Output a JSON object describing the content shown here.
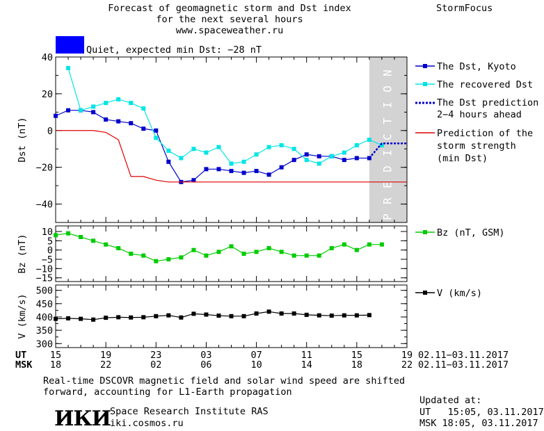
{
  "header": {
    "title_line1": "Forecast of geomagnetic storm and Dst index",
    "title_line2": "for the next several hours",
    "website": "www.spaceweather.ru",
    "brand": "StormFocus",
    "status_text": "Quiet, expected min Dst: −28 nT",
    "status_color": "#0000ff"
  },
  "dst_panel": {
    "ylabel": "Dst (nT)",
    "yticks": [
      "40",
      "20",
      "0",
      "−20",
      "−40"
    ],
    "prediction_band_text": "PREDICTION"
  },
  "bz_panel": {
    "ylabel": "Bz (nT)",
    "yticks": [
      "10",
      "5",
      "0",
      "−5",
      "−10",
      "−15"
    ]
  },
  "v_panel": {
    "ylabel": "V (km/s)",
    "yticks": [
      "500",
      "450",
      "400",
      "350",
      "300"
    ]
  },
  "legend": {
    "dst_kyoto": "The Dst, Kyoto",
    "recovered": "The recovered Dst",
    "prediction_1": "The Dst prediction",
    "prediction_2": "2−4 hours ahead",
    "strength_1": "Prediction of the",
    "strength_2": "storm strength",
    "strength_3": "(min Dst)",
    "bz": "Bz (nT, GSM)",
    "v": "V (km/s)"
  },
  "xaxis": {
    "ut_label": "UT",
    "msk_label": "MSK",
    "ut_ticks": [
      "15",
      "19",
      "23",
      "03",
      "07",
      "11",
      "15",
      "19"
    ],
    "msk_ticks": [
      "18",
      "22",
      "02",
      "06",
      "10",
      "14",
      "18",
      "22"
    ],
    "ut_range": "02.11−03.11.2017",
    "msk_range": "02.11−03.11.2017"
  },
  "footer": {
    "note_1": "Real-time DSCOVR magnetic field and solar wind speed are shifted",
    "note_2": "forward, accounting for L1-Earth propagation",
    "logo_text": "ИКИ",
    "institute": "Space Research Institute RAS",
    "site": "iki.cosmos.ru",
    "updated_label": "Updated at:",
    "updated_ut": "UT   15:05, 03.11.2017",
    "updated_msk": "MSK 18:05, 03.11.2017"
  },
  "chart_data": [
    {
      "type": "line",
      "panel": "Dst",
      "x_unit": "hours since 02.11 15 UT",
      "xlim": [
        0,
        28
      ],
      "ylim": [
        -50,
        40
      ],
      "prediction_band_x": [
        25,
        28
      ],
      "series": [
        {
          "name": "The Dst, Kyoto",
          "color": "#0000cc",
          "x": [
            0,
            1,
            2,
            3,
            4,
            5,
            6,
            7,
            8,
            9,
            10,
            11,
            12,
            13,
            14,
            15,
            16,
            17,
            18,
            19,
            20,
            21,
            22,
            23,
            24,
            25
          ],
          "y": [
            8,
            11,
            11,
            10,
            6,
            5,
            4,
            1,
            0,
            -17,
            -28,
            -27,
            -21,
            -21,
            -22,
            -23,
            -22,
            -24,
            -20,
            -16,
            -13,
            -14,
            -14,
            -16,
            -15,
            -15
          ]
        },
        {
          "name": "The recovered Dst",
          "color": "#00e5e5",
          "x": [
            1,
            2,
            3,
            4,
            5,
            6,
            7,
            8,
            9,
            10,
            11,
            12,
            13,
            14,
            15,
            16,
            17,
            18,
            19,
            20,
            21,
            22,
            23,
            24,
            25,
            26
          ],
          "y": [
            34,
            11,
            13,
            15,
            17,
            15,
            12,
            -4,
            -11,
            -15,
            -10,
            -12,
            -9,
            -18,
            -17,
            -13,
            -9,
            -8,
            -10,
            -16,
            -18,
            -14,
            -12,
            -8,
            -5,
            -8
          ]
        },
        {
          "name": "The Dst prediction 2−4 hours ahead",
          "color": "#0000cc",
          "dashed": true,
          "x": [
            25,
            26,
            27,
            28
          ],
          "y": [
            -15,
            -7,
            -7,
            -7
          ]
        },
        {
          "name": "Prediction of the storm strength (min Dst)",
          "color": "#dd0000",
          "x": [
            0,
            3,
            4,
            5,
            6,
            7,
            8,
            9,
            10,
            28
          ],
          "y": [
            0,
            0,
            -1,
            -5,
            -25,
            -25,
            -27,
            -28,
            -28,
            -28
          ]
        }
      ]
    },
    {
      "type": "line",
      "panel": "Bz",
      "xlim": [
        0,
        28
      ],
      "ylim": [
        -17,
        13
      ],
      "series": [
        {
          "name": "Bz (nT, GSM)",
          "color": "#00cc00",
          "x": [
            0,
            1,
            2,
            3,
            4,
            5,
            6,
            7,
            8,
            9,
            10,
            11,
            12,
            13,
            14,
            15,
            16,
            17,
            18,
            19,
            20,
            21,
            22,
            23,
            24,
            25,
            26
          ],
          "y": [
            8,
            9,
            7,
            5,
            3,
            1,
            -2,
            -3,
            -6,
            -5,
            -4,
            0,
            -3,
            -1,
            2,
            -2,
            -1,
            1,
            -1,
            -3,
            -3,
            -3,
            1,
            3,
            0,
            3,
            3
          ]
        }
      ]
    },
    {
      "type": "line",
      "panel": "V",
      "xlim": [
        0,
        28
      ],
      "ylim": [
        285,
        520
      ],
      "series": [
        {
          "name": "V (km/s)",
          "color": "#000000",
          "x": [
            0,
            1,
            2,
            3,
            4,
            5,
            6,
            7,
            8,
            9,
            10,
            11,
            12,
            13,
            14,
            15,
            16,
            17,
            18,
            19,
            20,
            21,
            22,
            23,
            24,
            25
          ],
          "y": [
            393,
            395,
            393,
            390,
            397,
            399,
            398,
            399,
            403,
            406,
            398,
            412,
            409,
            405,
            403,
            403,
            413,
            420,
            413,
            413,
            408,
            406,
            405,
            406,
            406,
            407
          ]
        }
      ]
    }
  ]
}
